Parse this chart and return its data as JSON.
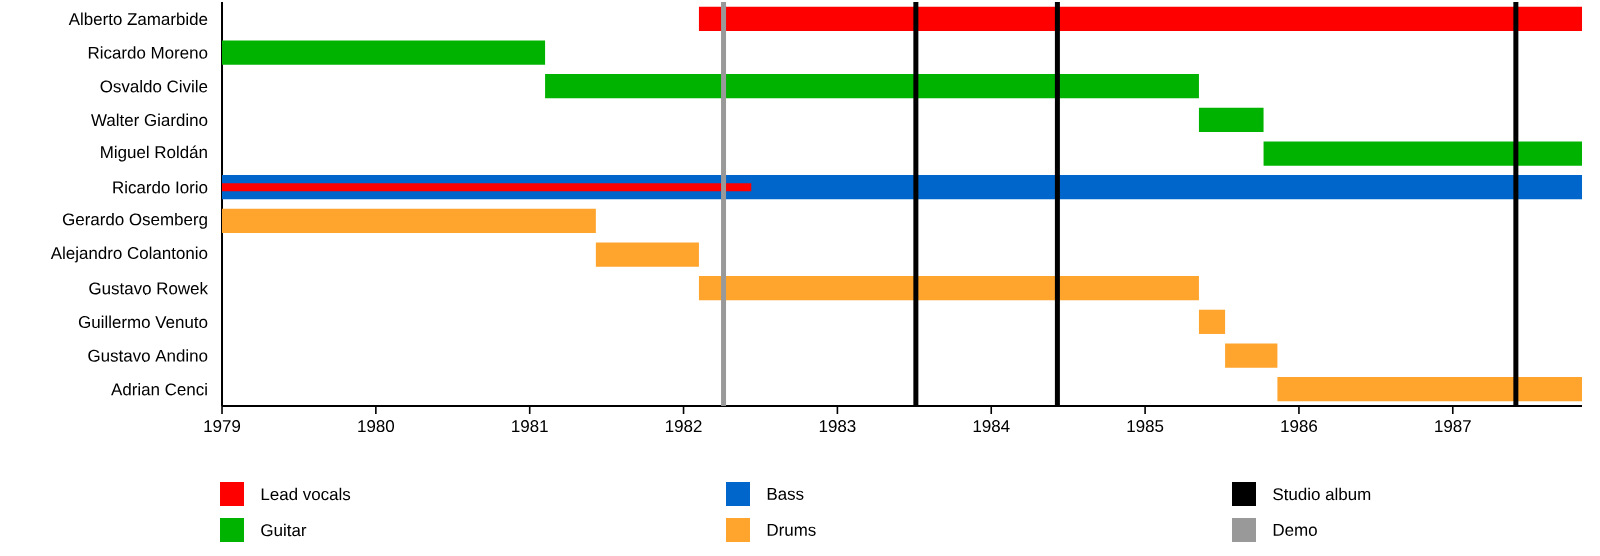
{
  "chart_data": {
    "type": "bar",
    "orientation": "horizontal",
    "categories": [
      "Alberto Zamarbide",
      "Ricardo Moreno",
      "Osvaldo Civile",
      "Walter Giardino",
      "Miguel Roldán",
      "Ricardo Iorio",
      "Gerardo Osemberg",
      "Alejandro Colantonio",
      "Gustavo Rowek",
      "Guillermo Venuto",
      "Gustavo Andino",
      "Adrian Cenci"
    ],
    "series": [
      {
        "name": "Lead vocals",
        "color": "#ff0000",
        "base": [
          1982.1,
          null,
          null,
          null,
          null,
          1979,
          null,
          null,
          null,
          null,
          null,
          null
        ],
        "values": [
          5.74,
          null,
          null,
          null,
          null,
          3.44,
          null,
          null,
          null,
          null,
          null,
          null
        ]
      },
      {
        "name": "Guitar",
        "color": "#00b300",
        "base": [
          null,
          1979,
          1981.1,
          1985.35,
          1985.77,
          null,
          null,
          null,
          null,
          null,
          null,
          null
        ],
        "values": [
          null,
          2.1,
          4.25,
          0.42,
          2.07,
          null,
          null,
          null,
          null,
          null,
          null,
          null
        ]
      },
      {
        "name": "Bass",
        "color": "#0066cc",
        "base": [
          null,
          null,
          null,
          null,
          null,
          1979,
          null,
          null,
          null,
          null,
          null,
          null
        ],
        "values": [
          null,
          null,
          null,
          null,
          null,
          8.84,
          null,
          null,
          null,
          null,
          null,
          null
        ]
      },
      {
        "name": "Drums",
        "color": "#ffa52d",
        "base": [
          null,
          null,
          null,
          null,
          null,
          null,
          1979,
          1981.43,
          1982.1,
          1985.35,
          1985.52,
          1985.86
        ],
        "values": [
          null,
          null,
          null,
          null,
          null,
          null,
          2.43,
          0.67,
          3.25,
          0.17,
          0.34,
          1.98
        ]
      }
    ],
    "ref_lines": [
      {
        "axis": "x",
        "value": 1983.51,
        "label": "Studio album",
        "color": "#000000"
      },
      {
        "axis": "x",
        "value": 1984.43,
        "color": "#000000"
      },
      {
        "axis": "x",
        "value": 1987.41,
        "color": "#000000"
      },
      {
        "axis": "x",
        "value": 1982.26,
        "label": "Demo",
        "color": "#999999"
      }
    ],
    "xlim": [
      1979,
      1987.84
    ],
    "xticks": [
      1979,
      1980,
      1981,
      1982,
      1983,
      1984,
      1985,
      1986,
      1987
    ],
    "legend": "bottom"
  }
}
